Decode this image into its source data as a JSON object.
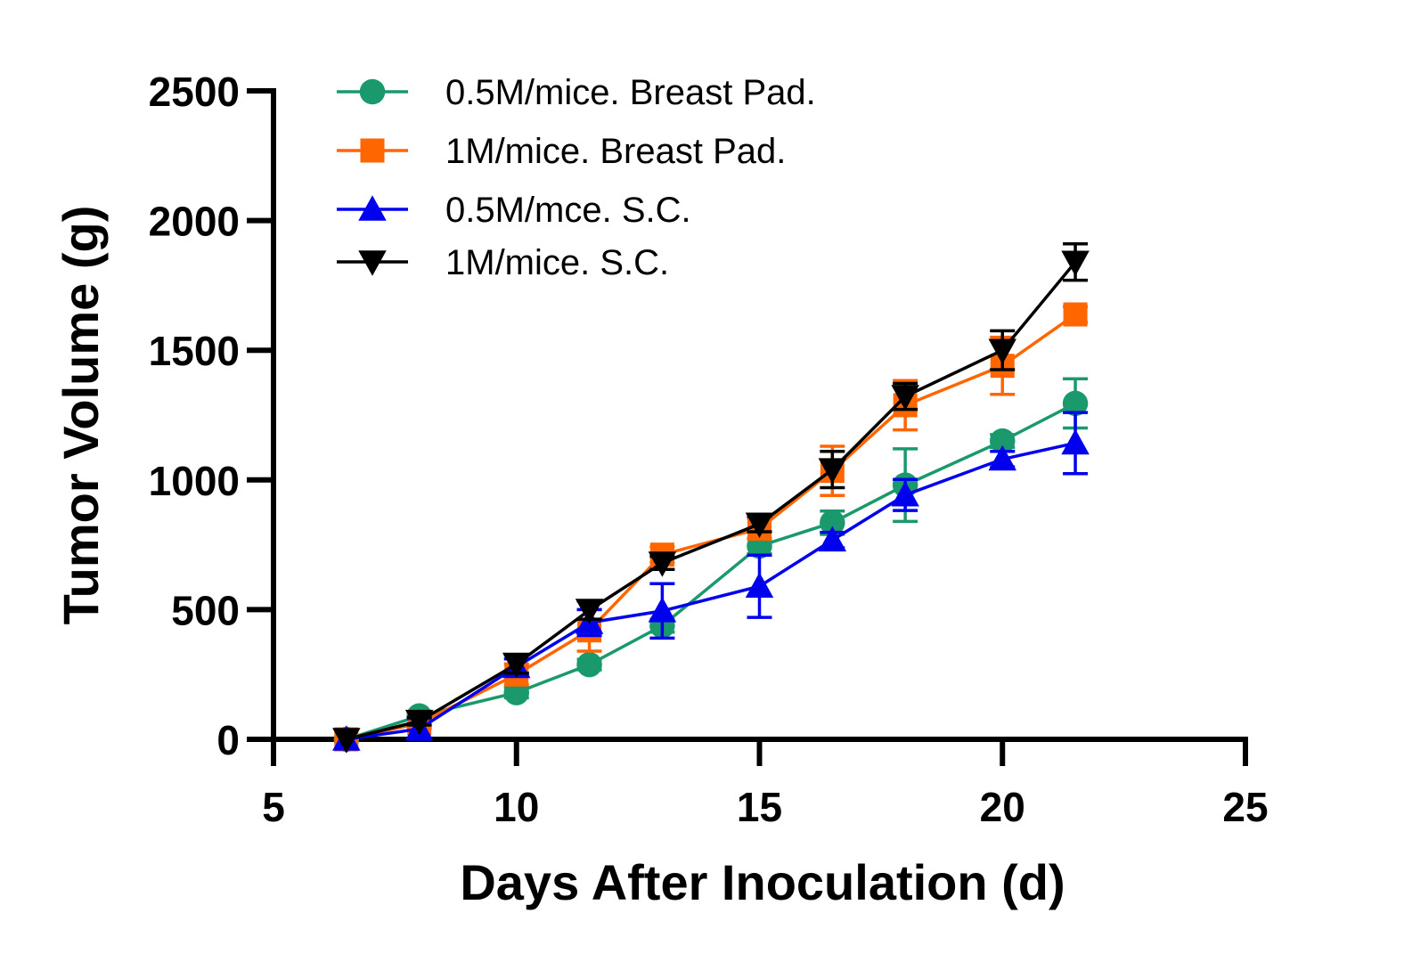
{
  "chart_data": {
    "type": "line",
    "title": "",
    "xlabel": "Days After Inoculation (d)",
    "ylabel": "Tumor Volume (g)",
    "xlim": [
      5,
      25
    ],
    "ylim": [
      0,
      2500
    ],
    "xticks": [
      5,
      10,
      15,
      20,
      25
    ],
    "yticks": [
      0,
      500,
      1000,
      1500,
      2000,
      2500
    ],
    "grid": false,
    "legend_position": "top-left",
    "x": [
      6.5,
      8,
      10,
      11.5,
      13,
      15,
      16.5,
      18,
      20,
      21.5
    ],
    "series": [
      {
        "name": "0.5M/mice. Breast Pad.",
        "color": "#1a9a6c",
        "marker": "circle",
        "values": [
          0,
          90,
          180,
          288,
          438,
          745,
          835,
          980,
          1150,
          1295
        ],
        "errors": [
          0,
          15,
          20,
          20,
          25,
          30,
          45,
          140,
          25,
          95
        ]
      },
      {
        "name": "1M/mice. Breast Pad.",
        "color": "#ff6600",
        "marker": "square",
        "values": [
          0,
          62,
          250,
          420,
          712,
          812,
          1035,
          1288,
          1440,
          1638
        ],
        "errors": [
          0,
          20,
          40,
          80,
          30,
          40,
          95,
          95,
          110,
          30
        ]
      },
      {
        "name": "0.5M/mce. S.C.",
        "color": "#0000ee",
        "marker": "triangle-up",
        "values": [
          0,
          40,
          280,
          450,
          495,
          590,
          768,
          942,
          1080,
          1142
        ],
        "errors": [
          0,
          40,
          30,
          50,
          105,
          120,
          30,
          60,
          30,
          118
        ]
      },
      {
        "name": "1M/mice. S.C.",
        "color": "#000000",
        "marker": "triangle-down",
        "values": [
          0,
          70,
          290,
          498,
          680,
          830,
          1040,
          1322,
          1500,
          1840
        ],
        "errors": [
          0,
          15,
          35,
          35,
          25,
          30,
          70,
          50,
          75,
          70
        ]
      }
    ]
  }
}
